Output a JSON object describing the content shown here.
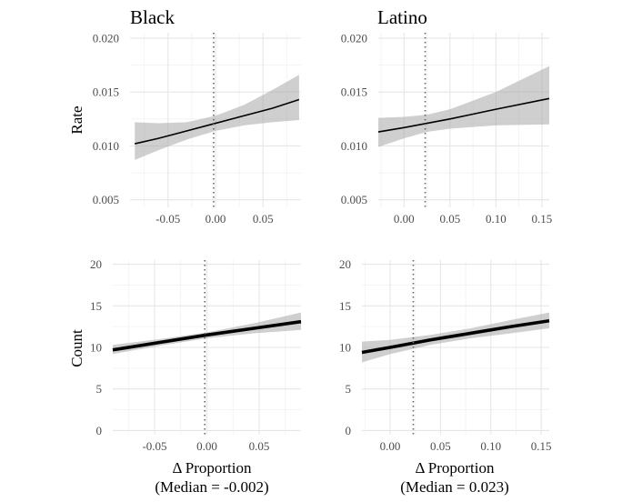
{
  "colors": {
    "line": "#000000",
    "ribbon": "#a8a8a8",
    "grid_major": "#e6e6e6",
    "grid_minor": "#f2f2f2",
    "median_line": "#666666"
  },
  "shared_labels": {
    "rate_ylabel": "Rate",
    "count_ylabel": "Count",
    "black_xlabel": "Δ Proportion",
    "black_xlabel_sub": "(Median = -0.002)",
    "latino_xlabel": "Δ Proportion",
    "latino_xlabel_sub": "(Median = 0.023)"
  },
  "chart_data": [
    {
      "type": "line",
      "title": "Black",
      "xlabel": "",
      "ylabel": "Rate",
      "xlim": [
        -0.09,
        0.09
      ],
      "ylim": [
        0.0043,
        0.0205
      ],
      "xticks": [
        -0.05,
        0.0,
        0.05
      ],
      "xtick_labels": [
        "-0.05",
        "0.00",
        "0.05"
      ],
      "yticks": [
        0.005,
        0.01,
        0.015,
        0.02
      ],
      "ytick_labels": [
        "0.005",
        "0.010",
        "0.015",
        "0.020"
      ],
      "median_vline": -0.002,
      "line_width": 1.6,
      "series": [
        {
          "x": [
            -0.085,
            -0.06,
            -0.03,
            0.0,
            0.03,
            0.06,
            0.088
          ],
          "y": [
            0.0102,
            0.0107,
            0.0114,
            0.0121,
            0.0128,
            0.0135,
            0.0143
          ],
          "lower": [
            0.0087,
            0.0096,
            0.0106,
            0.0114,
            0.0119,
            0.0122,
            0.0124
          ],
          "upper": [
            0.0122,
            0.0121,
            0.0122,
            0.0128,
            0.0138,
            0.0152,
            0.0166
          ]
        }
      ]
    },
    {
      "type": "line",
      "title": "Latino",
      "xlabel": "",
      "ylabel": "",
      "xlim": [
        -0.028,
        0.158
      ],
      "ylim": [
        0.0043,
        0.0205
      ],
      "xticks": [
        0.0,
        0.05,
        0.1,
        0.15
      ],
      "xtick_labels": [
        "0.00",
        "0.05",
        "0.10",
        "0.15"
      ],
      "yticks": [
        0.005,
        0.01,
        0.015,
        0.02
      ],
      "ytick_labels": [
        "0.005",
        "0.010",
        "0.015",
        "0.020"
      ],
      "median_vline": 0.023,
      "line_width": 1.6,
      "series": [
        {
          "x": [
            -0.028,
            0.0,
            0.025,
            0.05,
            0.1,
            0.158
          ],
          "y": [
            0.0113,
            0.0117,
            0.0121,
            0.0125,
            0.0134,
            0.0144
          ],
          "lower": [
            0.0099,
            0.0107,
            0.0113,
            0.0116,
            0.0119,
            0.012
          ],
          "upper": [
            0.0126,
            0.0127,
            0.0129,
            0.0134,
            0.015,
            0.0174
          ]
        }
      ]
    },
    {
      "type": "line",
      "title": "",
      "xlabel": "Δ Proportion",
      "ylabel": "Count",
      "xlim": [
        -0.09,
        0.09
      ],
      "ylim": [
        -0.5,
        20.5
      ],
      "xticks": [
        -0.05,
        0.0,
        0.05
      ],
      "xtick_labels": [
        "-0.05",
        "0.00",
        "0.05"
      ],
      "yticks": [
        0,
        5,
        10,
        15,
        20
      ],
      "ytick_labels": [
        "0",
        "5",
        "10",
        "15",
        "20"
      ],
      "median_vline": -0.002,
      "line_width": 3.6,
      "series": [
        {
          "x": [
            -0.09,
            -0.045,
            0.0,
            0.045,
            0.09
          ],
          "y": [
            9.7,
            10.6,
            11.5,
            12.3,
            13.1
          ],
          "lower": [
            9.2,
            10.2,
            11.1,
            11.7,
            12.1
          ],
          "upper": [
            10.3,
            11.0,
            11.8,
            12.9,
            14.2
          ]
        }
      ]
    },
    {
      "type": "line",
      "title": "",
      "xlabel": "Δ Proportion",
      "ylabel": "",
      "xlim": [
        -0.028,
        0.158
      ],
      "ylim": [
        -0.5,
        20.5
      ],
      "xticks": [
        0.0,
        0.05,
        0.1,
        0.15
      ],
      "xtick_labels": [
        "0.00",
        "0.05",
        "0.10",
        "0.15"
      ],
      "yticks": [
        0,
        5,
        10,
        15,
        20
      ],
      "ytick_labels": [
        "0",
        "5",
        "10",
        "15",
        "20"
      ],
      "median_vline": 0.023,
      "line_width": 3.6,
      "series": [
        {
          "x": [
            -0.028,
            0.0,
            0.04,
            0.08,
            0.12,
            0.158
          ],
          "y": [
            9.4,
            10.0,
            10.9,
            11.7,
            12.5,
            13.2
          ],
          "lower": [
            8.2,
            9.2,
            10.3,
            11.1,
            11.7,
            12.3
          ],
          "upper": [
            10.7,
            10.9,
            11.5,
            12.3,
            13.3,
            14.2
          ]
        }
      ]
    }
  ]
}
